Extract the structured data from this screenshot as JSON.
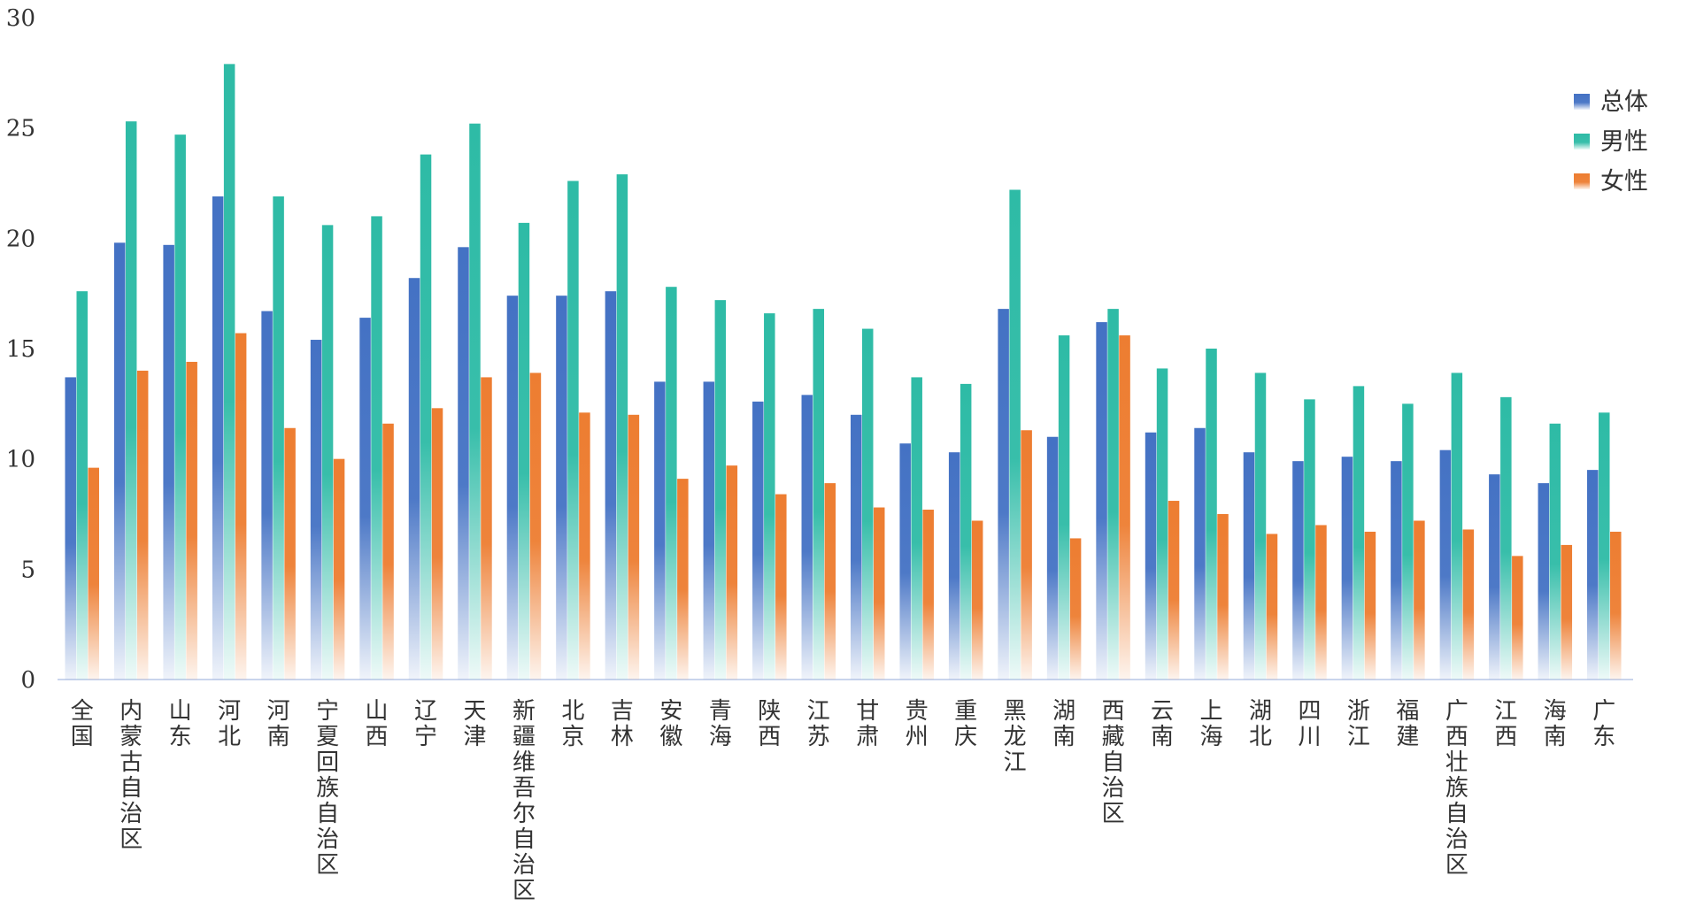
{
  "chart_data": {
    "type": "bar",
    "title": "",
    "xlabel": "",
    "ylabel": "",
    "ylim": [
      0,
      30
    ],
    "yticks": [
      0,
      5,
      10,
      15,
      20,
      25,
      30
    ],
    "grid": false,
    "legend_position": "right",
    "categories": [
      "全国",
      "内蒙古自治区",
      "山东",
      "河北",
      "河南",
      "宁夏回族自治区",
      "山西",
      "辽宁",
      "天津",
      "新疆维吾尔自治区",
      "北京",
      "吉林",
      "安徽",
      "青海",
      "陕西",
      "江苏",
      "甘肃",
      "贵州",
      "重庆",
      "黑龙江",
      "湖南",
      "西藏自治区",
      "云南",
      "上海",
      "湖北",
      "四川",
      "浙江",
      "福建",
      "广西壮族自治区",
      "江西",
      "海南",
      "广东"
    ],
    "series": [
      {
        "name": "总体",
        "color": "#4472C4",
        "values": [
          13.7,
          19.8,
          19.7,
          21.9,
          16.7,
          15.4,
          16.4,
          18.2,
          19.6,
          17.4,
          17.4,
          17.6,
          13.5,
          13.5,
          12.6,
          12.9,
          12.0,
          10.7,
          10.3,
          16.8,
          11.0,
          16.2,
          11.2,
          11.4,
          10.3,
          9.9,
          10.1,
          9.9,
          10.4,
          9.3,
          8.9,
          9.5
        ]
      },
      {
        "name": "男性",
        "color": "#2EBBA6",
        "values": [
          17.6,
          25.3,
          24.7,
          27.9,
          21.9,
          20.6,
          21.0,
          23.8,
          25.2,
          20.7,
          22.6,
          22.9,
          17.8,
          17.2,
          16.6,
          16.8,
          15.9,
          13.7,
          13.4,
          22.2,
          15.6,
          16.8,
          14.1,
          15.0,
          13.9,
          12.7,
          13.3,
          12.5,
          13.9,
          12.8,
          11.6,
          12.1
        ]
      },
      {
        "name": "女性",
        "color": "#ED7D31",
        "values": [
          9.6,
          14.0,
          14.4,
          15.7,
          11.4,
          10.0,
          11.6,
          12.3,
          13.7,
          13.9,
          12.1,
          12.0,
          9.1,
          9.7,
          8.4,
          8.9,
          7.8,
          7.7,
          7.2,
          11.3,
          6.4,
          15.6,
          8.1,
          7.5,
          6.6,
          7.0,
          6.7,
          7.2,
          6.8,
          5.6,
          6.1,
          6.7
        ]
      }
    ]
  }
}
